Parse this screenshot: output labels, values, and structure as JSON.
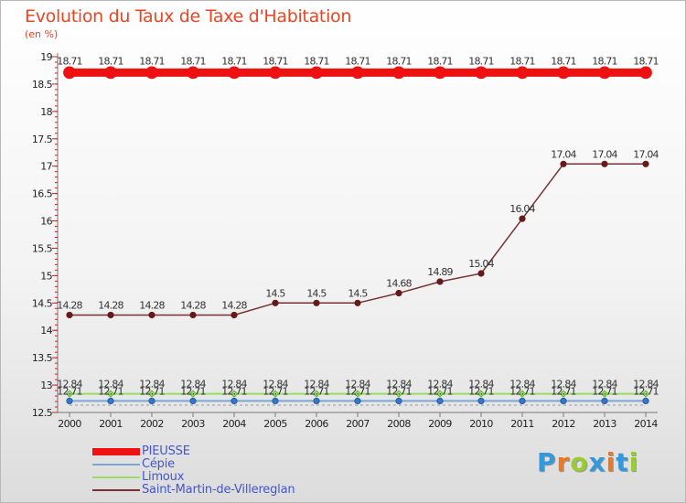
{
  "header": {
    "title": "Evolution du Taux de Taxe d'Habitation",
    "unit": "(en %)"
  },
  "chart_data": {
    "type": "line",
    "title": "Evolution du Taux de Taxe d'Habitation",
    "ylabel": "(en %)",
    "xlabel": "",
    "x": [
      "2000",
      "2001",
      "2002",
      "2003",
      "2004",
      "2005",
      "2006",
      "2007",
      "2008",
      "2009",
      "2010",
      "2011",
      "2012",
      "2013",
      "2014"
    ],
    "ylim": [
      12.5,
      19
    ],
    "yticks": [
      "12.5",
      "13",
      "13.5",
      "14",
      "14.5",
      "15",
      "15.5",
      "16",
      "16.5",
      "17",
      "17.5",
      "18",
      "18.5",
      "19"
    ],
    "grid": false,
    "legend_position": "bottom-left",
    "series": [
      {
        "name": "PIEUSSE",
        "color": "#ee1111",
        "values": [
          18.71,
          18.71,
          18.71,
          18.71,
          18.71,
          18.71,
          18.71,
          18.71,
          18.71,
          18.71,
          18.71,
          18.71,
          18.71,
          18.71,
          18.71
        ],
        "labels": [
          "18.71",
          "18.71",
          "18.71",
          "18.71",
          "18.71",
          "18.71",
          "18.71",
          "18.71",
          "18.71",
          "18.71",
          "18.71",
          "18.71",
          "18.71",
          "18.71",
          "18.71"
        ]
      },
      {
        "name": "Cépie",
        "color": "#7aa6d6",
        "values": [
          12.71,
          12.71,
          12.71,
          12.71,
          12.71,
          12.71,
          12.71,
          12.71,
          12.71,
          12.71,
          12.71,
          12.71,
          12.71,
          12.71,
          12.71
        ],
        "labels": [
          "12.71",
          "12.71",
          "12.71",
          "12.71",
          "12.71",
          "12.71",
          "12.71",
          "12.71",
          "12.71",
          "12.71",
          "12.71",
          "12.71",
          "12.71",
          "12.71",
          "12.71"
        ]
      },
      {
        "name": "Limoux",
        "color": "#99dd66",
        "values": [
          12.84,
          12.84,
          12.84,
          12.84,
          12.84,
          12.84,
          12.84,
          12.84,
          12.84,
          12.84,
          12.84,
          12.84,
          12.84,
          12.84,
          12.84
        ],
        "labels": [
          "12.84",
          "12.84",
          "12.84",
          "12.84",
          "12.84",
          "12.84",
          "12.84",
          "12.84",
          "12.84",
          "12.84",
          "12.84",
          "12.84",
          "12.84",
          "12.84",
          "12.84"
        ]
      },
      {
        "name": "Saint-Martin-de-Villereglan",
        "color": "#773333",
        "values": [
          14.28,
          14.28,
          14.28,
          14.28,
          14.28,
          14.5,
          14.5,
          14.5,
          14.68,
          14.89,
          15.04,
          16.04,
          17.04,
          17.04,
          17.04
        ],
        "labels": [
          "14.28",
          "14.28",
          "14.28",
          "14.28",
          "14.28",
          "14.5",
          "14.5",
          "14.5",
          "14.68",
          "14.89",
          "15.04",
          "16.04",
          "17.04",
          "17.04",
          "17.04"
        ]
      }
    ]
  },
  "legend": {
    "items": [
      {
        "label": "PIEUSSE",
        "color": "#ee1111"
      },
      {
        "label": "Cépie",
        "color": "#7aa6d6"
      },
      {
        "label": "Limoux",
        "color": "#99dd66"
      },
      {
        "label": "Saint-Martin-de-Villereglan",
        "color": "#773333"
      }
    ]
  },
  "brand": {
    "logo_letters": [
      "P",
      "r",
      "o",
      "x",
      "i",
      "t",
      "i"
    ],
    "logo_colors": [
      "#3399dd",
      "#ee7722",
      "#99cc33",
      "#3399dd",
      "#ee7722",
      "#3399dd",
      "#99cc33"
    ]
  }
}
